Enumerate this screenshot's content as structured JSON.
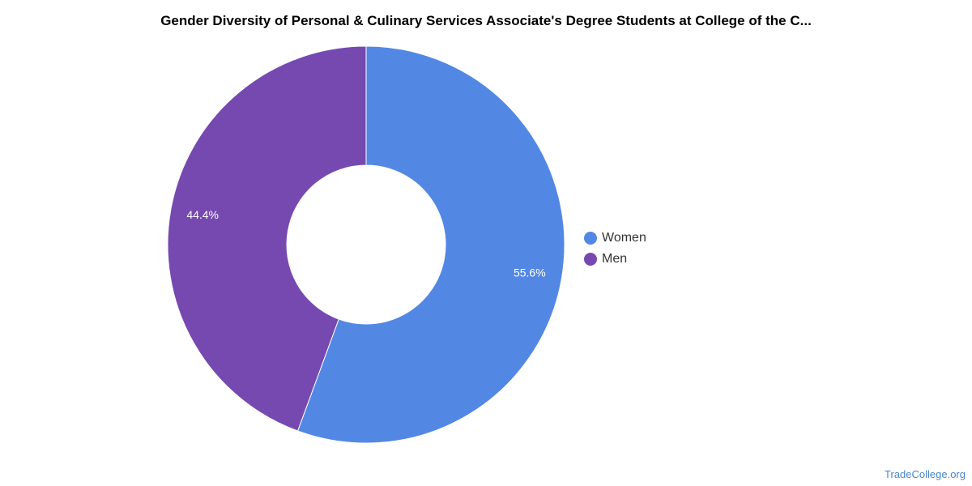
{
  "chart_data": {
    "type": "pie",
    "variant": "donut",
    "title": "Gender Diversity of Personal & Culinary Services Associate's Degree Students at College of the C...",
    "categories": [
      "Women",
      "Men"
    ],
    "values": [
      55.6,
      44.4
    ],
    "value_labels": [
      "55.6%",
      "44.4%"
    ],
    "colors": [
      "#5387e4",
      "#7649b1"
    ],
    "legend": {
      "position": "right",
      "items": [
        "Women",
        "Men"
      ]
    }
  },
  "watermark": {
    "text": "TradeCollege.org",
    "color": "#4a86c8"
  }
}
